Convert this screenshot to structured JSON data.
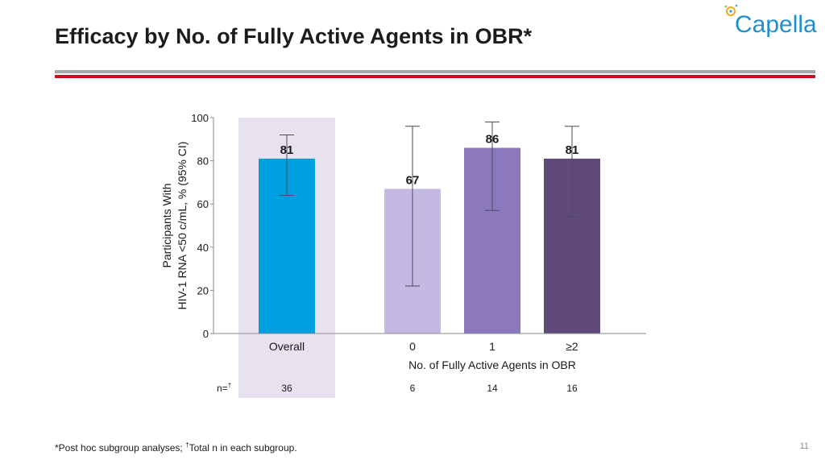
{
  "title": "Efficacy by No. of Fully Active Agents in OBR*",
  "logo": {
    "text": "Capella",
    "icon": "capella-logo-icon",
    "colors": [
      "#f5a623",
      "#2ba8d9",
      "#7cc242",
      "#1f8fce"
    ]
  },
  "chart_data": {
    "type": "bar",
    "categories": [
      "Overall",
      "0",
      "1",
      "≥2"
    ],
    "values": [
      81,
      67,
      86,
      81
    ],
    "ci_low": [
      64,
      22,
      57,
      54
    ],
    "ci_high": [
      92,
      96,
      98,
      96
    ],
    "value_labels": [
      "81",
      "67",
      "86",
      "81"
    ],
    "bar_colors": [
      "#00a0e0",
      "#c4b9e2",
      "#8b78bd",
      "#604a7b"
    ],
    "n_label": "n=",
    "n_label_sup": "†",
    "n_values": [
      "36",
      "6",
      "14",
      "16"
    ],
    "ylabel_lines": [
      "Participants With",
      "HIV-1 RNA <50 c/mL, % (95% CI)"
    ],
    "xlabel": "No. of Fully Active Agents in OBR",
    "ylim": [
      0,
      100
    ],
    "yticks": [
      0,
      20,
      40,
      60,
      80,
      100
    ],
    "grid": false,
    "highlight_category": "Overall",
    "highlight_color": "#e8e1f0"
  },
  "footnote": {
    "part1": "*Post hoc subgroup analyses; ",
    "sup": "†",
    "part2": "Total n in each subgroup."
  },
  "page_number": "11"
}
